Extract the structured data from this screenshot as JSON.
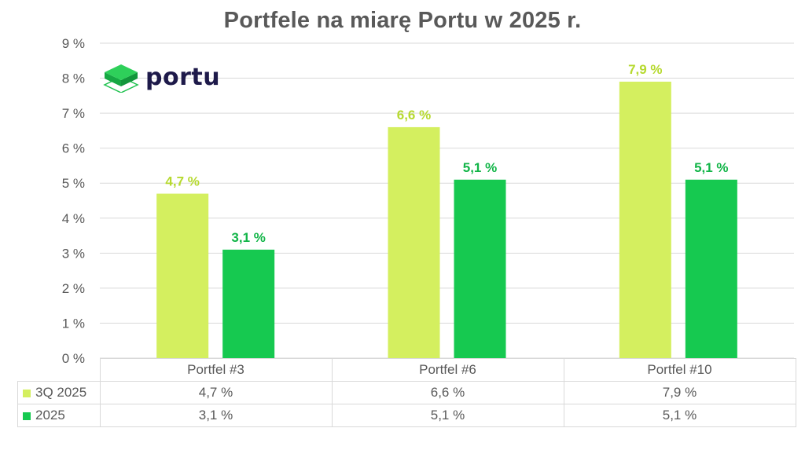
{
  "chart_data": {
    "type": "bar",
    "title": "Portfele na miarę Portu w 2025 r.",
    "categories": [
      "Portfel #3",
      "Portfel #6",
      "Portfel #10"
    ],
    "series": [
      {
        "name": "3Q 2025",
        "values": [
          4.7,
          6.6,
          7.9
        ],
        "labels": [
          "4,7 %",
          "6,6 %",
          "7,9 %"
        ],
        "color": "#d4ef5f",
        "label_color": "#b6d92f"
      },
      {
        "name": "2025",
        "values": [
          3.1,
          5.1,
          5.1
        ],
        "labels": [
          "3,1 %",
          "5,1 %",
          "5,1 %"
        ],
        "color": "#16c950",
        "label_color": "#12b548"
      }
    ],
    "yticks": [
      "0 %",
      "1 %",
      "2 %",
      "3 %",
      "4 %",
      "5 %",
      "6 %",
      "7 %",
      "8 %",
      "9 %"
    ],
    "ylim": [
      0,
      9
    ],
    "grid": true,
    "legend": "data table below chart"
  },
  "logo": {
    "text": "portu",
    "colors": {
      "top": "#2ed05a",
      "side": "#16a843",
      "outline": "#1fc24f"
    }
  }
}
